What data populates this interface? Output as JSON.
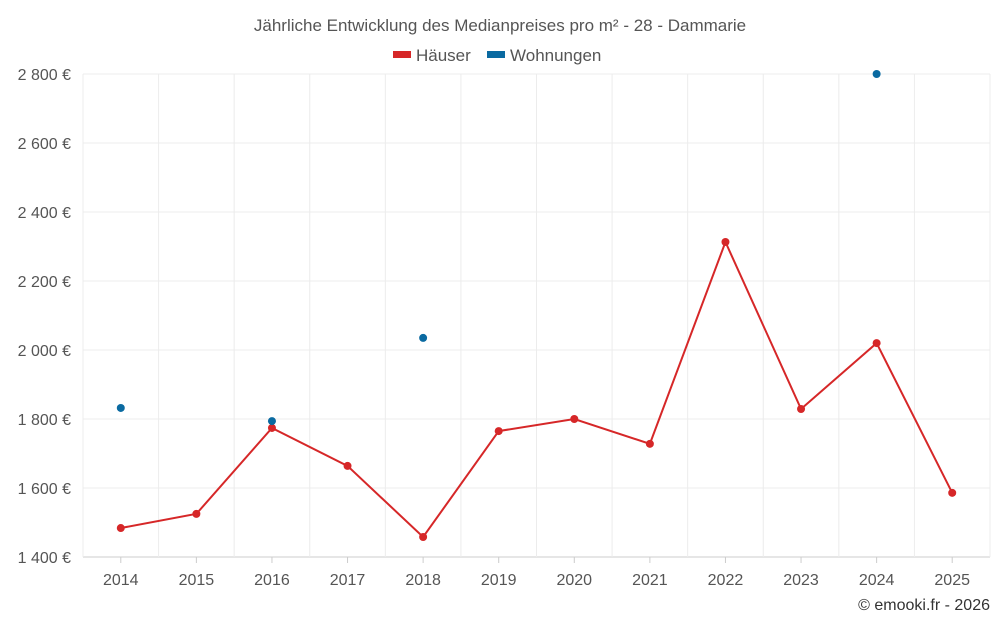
{
  "chart_data": {
    "type": "line",
    "title": "Jährliche Entwicklung des Medianpreises pro m² - 28 - Dammarie",
    "xlabel": "",
    "ylabel": "",
    "categories": [
      "2014",
      "2015",
      "2016",
      "2017",
      "2018",
      "2019",
      "2020",
      "2021",
      "2022",
      "2023",
      "2024",
      "2025"
    ],
    "ylim": [
      1400,
      2800
    ],
    "yticks": [
      1400,
      1600,
      1800,
      2000,
      2200,
      2400,
      2600,
      2800
    ],
    "ytick_labels": [
      "1 400 €",
      "1 600 €",
      "1 800 €",
      "2 000 €",
      "2 200 €",
      "2 400 €",
      "2 600 €",
      "2 800 €"
    ],
    "grid": true,
    "legend_position": "top-center",
    "series": [
      {
        "name": "Häuser",
        "color": "#d62728",
        "values": [
          1484,
          1525,
          1774,
          1664,
          1458,
          1765,
          1800,
          1728,
          2313,
          1829,
          2020,
          1586
        ]
      },
      {
        "name": "Wohnungen",
        "color": "#0a6aa1",
        "values": [
          1832,
          null,
          1794,
          null,
          2035,
          null,
          null,
          null,
          null,
          null,
          2800,
          null
        ]
      }
    ],
    "credit": "© emooki.fr - 2026"
  }
}
